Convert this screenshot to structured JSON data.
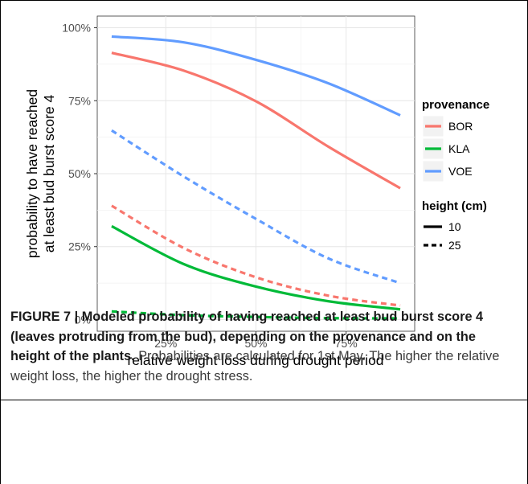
{
  "chart_data": {
    "type": "line",
    "title": "",
    "xlabel": "relative weight loss during drought period",
    "ylabel_lines": [
      "probability to have reached",
      "at least bud burst score 4"
    ],
    "xlim": [
      0.06,
      0.94
    ],
    "ylim": [
      -0.04,
      1.04
    ],
    "xticks": [
      0.25,
      0.5,
      0.75
    ],
    "xtick_labels": [
      "25%",
      "50%",
      "75%"
    ],
    "yticks": [
      0,
      0.25,
      0.5,
      0.75,
      1.0
    ],
    "ytick_labels": [
      "0%",
      "25%",
      "50%",
      "75%",
      "100%"
    ],
    "grid": true,
    "legend_placement": "right",
    "legend_color": {
      "title": "provenance",
      "entries": [
        {
          "label": "BOR",
          "color": "#F8766D"
        },
        {
          "label": "KLA",
          "color": "#00BA38"
        },
        {
          "label": "VOE",
          "color": "#619CFF"
        }
      ]
    },
    "legend_linetype": {
      "title": "height (cm)",
      "entries": [
        {
          "label": "10",
          "dash": "solid"
        },
        {
          "label": "25",
          "dash": "dashed"
        }
      ]
    },
    "x": [
      0.1,
      0.3,
      0.5,
      0.7,
      0.9
    ],
    "series": [
      {
        "provenance": "BOR",
        "height": "10",
        "color": "#F8766D",
        "dash": "solid",
        "values": [
          0.914,
          0.853,
          0.748,
          0.593,
          0.45
        ]
      },
      {
        "provenance": "KLA",
        "height": "10",
        "color": "#00BA38",
        "dash": "solid",
        "values": [
          0.32,
          0.19,
          0.113,
          0.063,
          0.035
        ]
      },
      {
        "provenance": "VOE",
        "height": "10",
        "color": "#619CFF",
        "dash": "solid",
        "values": [
          0.97,
          0.95,
          0.89,
          0.81,
          0.7
        ]
      },
      {
        "provenance": "BOR",
        "height": "25",
        "color": "#F8766D",
        "dash": "dashed",
        "values": [
          0.39,
          0.245,
          0.145,
          0.082,
          0.048
        ]
      },
      {
        "provenance": "KLA",
        "height": "25",
        "color": "#00BA38",
        "dash": "dashed",
        "values": [
          0.028,
          0.015,
          0.009,
          0.005,
          0.004
        ]
      },
      {
        "provenance": "VOE",
        "height": "25",
        "color": "#619CFF",
        "dash": "dashed",
        "values": [
          0.648,
          0.49,
          0.345,
          0.21,
          0.125
        ]
      }
    ]
  },
  "caption": {
    "bold": "FIGURE 7 | Modeled probability of having reached at least bud burst score 4 (leaves protruding from the bud), depending on the provenance and on the height of the plants.",
    "text": " Probabilities are calculated for 1st May. The higher the relative weight loss, the higher the drought stress."
  }
}
